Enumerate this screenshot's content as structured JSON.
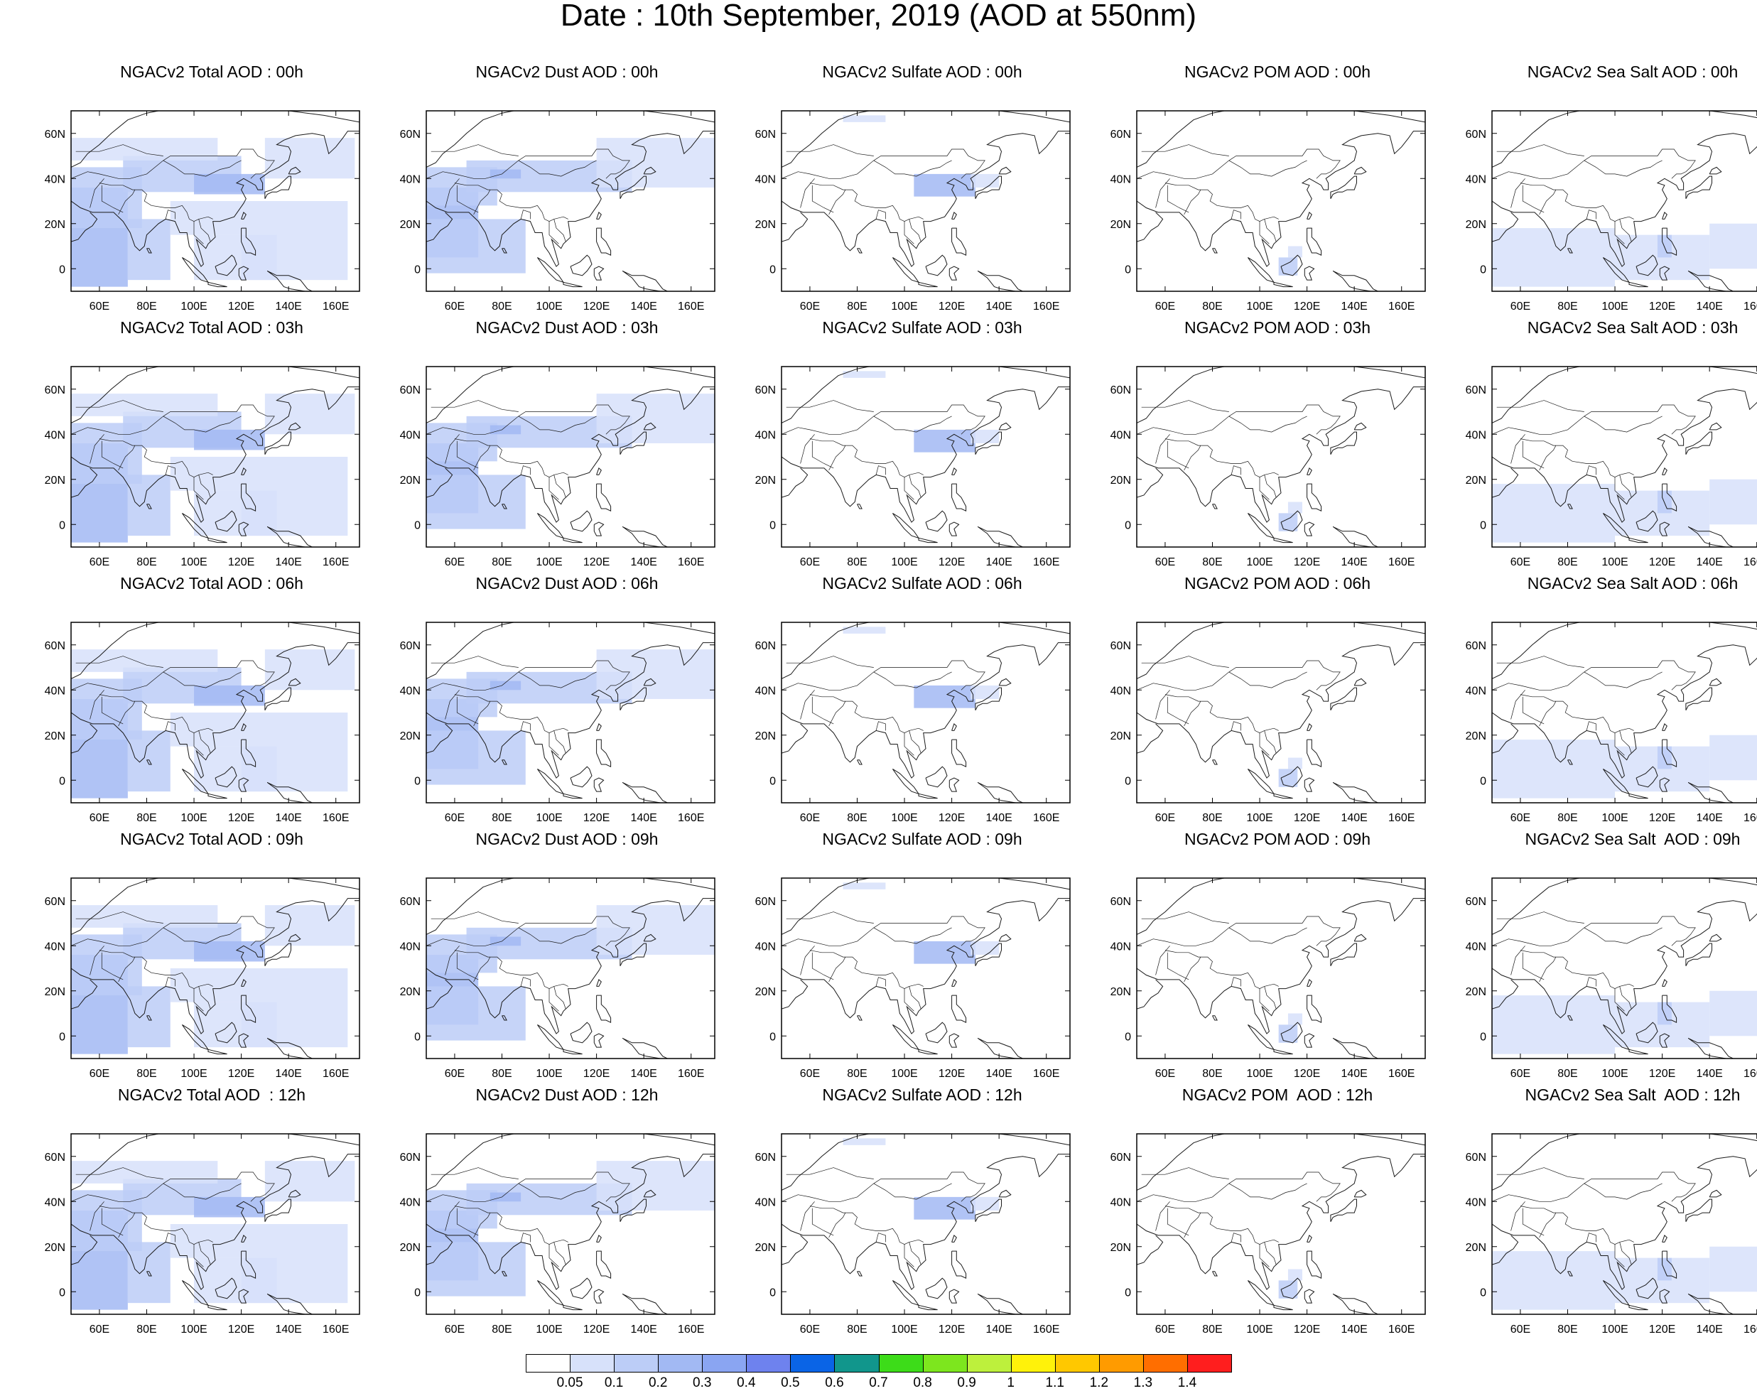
{
  "title": "Date : 10th September, 2019 (AOD at 550nm)",
  "map": {
    "lon_range": [
      48,
      170
    ],
    "lat_range": [
      -10,
      70
    ],
    "x_ticks": [
      "60E",
      "80E",
      "100E",
      "120E",
      "140E",
      "160E"
    ],
    "y_ticks": [
      "60N",
      "40N",
      "20N",
      "0"
    ]
  },
  "columns": [
    "Total",
    "Dust",
    "Sulfate",
    "POM",
    "Sea Salt"
  ],
  "hours": [
    "00h",
    "03h",
    "06h",
    "09h",
    "12h"
  ],
  "panel_titles": [
    [
      "NGACv2 Total AOD : 00h",
      "NGACv2 Dust AOD : 00h",
      "NGACv2 Sulfate AOD : 00h",
      "NGACv2 POM AOD : 00h",
      "NGACv2 Sea Salt AOD : 00h"
    ],
    [
      "NGACv2 Total AOD : 03h",
      "NGACv2 Dust AOD : 03h",
      "NGACv2 Sulfate AOD : 03h",
      "NGACv2 POM AOD : 03h",
      "NGACv2 Sea Salt AOD : 03h"
    ],
    [
      "NGACv2 Total AOD : 06h",
      "NGACv2 Dust AOD : 06h",
      "NGACv2 Sulfate AOD : 06h",
      "NGACv2 POM AOD : 06h",
      "NGACv2 Sea Salt AOD : 06h"
    ],
    [
      "NGACv2 Total AOD : 09h",
      "NGACv2 Dust AOD : 09h",
      "NGACv2 Sulfate AOD : 09h",
      "NGACv2 POM AOD : 09h",
      "NGACv2 Sea Salt  AOD : 09h"
    ],
    [
      "NGACv2 Total AOD  : 12h",
      "NGACv2 Dust AOD : 12h",
      "NGACv2 Sulfate AOD : 12h",
      "NGACv2 POM  AOD : 12h",
      "NGACv2 Sea Salt  AOD : 12h"
    ]
  ],
  "colorbar": {
    "labels": [
      "0.05",
      "0.1",
      "0.2",
      "0.3",
      "0.4",
      "0.5",
      "0.6",
      "0.7",
      "0.8",
      "0.9",
      "1",
      "1.1",
      "1.2",
      "1.3",
      "1.4"
    ],
    "colors": [
      "#ffffff",
      "#d7e1fa",
      "#bccdf7",
      "#a2b9f3",
      "#8aa5f2",
      "#6e82ee",
      "#0a64e6",
      "#11968c",
      "#3ddc19",
      "#7de61e",
      "#bdf03c",
      "#fff20a",
      "#ffc800",
      "#ff9b00",
      "#ff6e00",
      "#ff1e1e"
    ]
  },
  "aod_regions": {
    "Total": [
      {
        "lon": [
          48,
          72
        ],
        "lat": [
          -8,
          36
        ],
        "level": 3
      },
      {
        "lon": [
          48,
          78
        ],
        "lat": [
          18,
          45
        ],
        "level": 2
      },
      {
        "lon": [
          70,
          120
        ],
        "lat": [
          34,
          50
        ],
        "level": 2
      },
      {
        "lon": [
          100,
          130
        ],
        "lat": [
          33,
          42
        ],
        "level": 3
      },
      {
        "lon": [
          72,
          90
        ],
        "lat": [
          -5,
          22
        ],
        "level": 2
      },
      {
        "lon": [
          100,
          135
        ],
        "lat": [
          -5,
          15
        ],
        "level": 1
      },
      {
        "lon": [
          120,
          165
        ],
        "lat": [
          -5,
          30
        ],
        "level": 1
      },
      {
        "lon": [
          130,
          168
        ],
        "lat": [
          40,
          58
        ],
        "level": 1
      },
      {
        "lon": [
          48,
          110
        ],
        "lat": [
          48,
          58
        ],
        "level": 1
      },
      {
        "lon": [
          90,
          120
        ],
        "lat": [
          15,
          30
        ],
        "level": 1
      }
    ],
    "Dust": [
      {
        "lon": [
          48,
          70
        ],
        "lat": [
          5,
          36
        ],
        "level": 3
      },
      {
        "lon": [
          48,
          90
        ],
        "lat": [
          -2,
          22
        ],
        "level": 2
      },
      {
        "lon": [
          65,
          135
        ],
        "lat": [
          34,
          48
        ],
        "level": 2
      },
      {
        "lon": [
          48,
          78
        ],
        "lat": [
          28,
          45
        ],
        "level": 2
      },
      {
        "lon": [
          120,
          170
        ],
        "lat": [
          36,
          58
        ],
        "level": 1
      },
      {
        "lon": [
          75,
          88
        ],
        "lat": [
          40,
          44
        ],
        "level": 3
      }
    ],
    "Sulfate": [
      {
        "lon": [
          104,
          130
        ],
        "lat": [
          32,
          42
        ],
        "level": 3
      },
      {
        "lon": [
          128,
          140
        ],
        "lat": [
          36,
          42
        ],
        "level": 1
      },
      {
        "lon": [
          74,
          92
        ],
        "lat": [
          65,
          68
        ],
        "level": 1
      }
    ],
    "POM": [
      {
        "lon": [
          108,
          116
        ],
        "lat": [
          -3,
          5
        ],
        "level": 2
      },
      {
        "lon": [
          112,
          118
        ],
        "lat": [
          5,
          10
        ],
        "level": 1
      }
    ],
    "Sea Salt": [
      {
        "lon": [
          48,
          100
        ],
        "lat": [
          -8,
          18
        ],
        "level": 1
      },
      {
        "lon": [
          100,
          140
        ],
        "lat": [
          -5,
          15
        ],
        "level": 1
      },
      {
        "lon": [
          140,
          168
        ],
        "lat": [
          0,
          20
        ],
        "level": 1
      },
      {
        "lon": [
          118,
          124
        ],
        "lat": [
          5,
          15
        ],
        "level": 2
      }
    ]
  }
}
